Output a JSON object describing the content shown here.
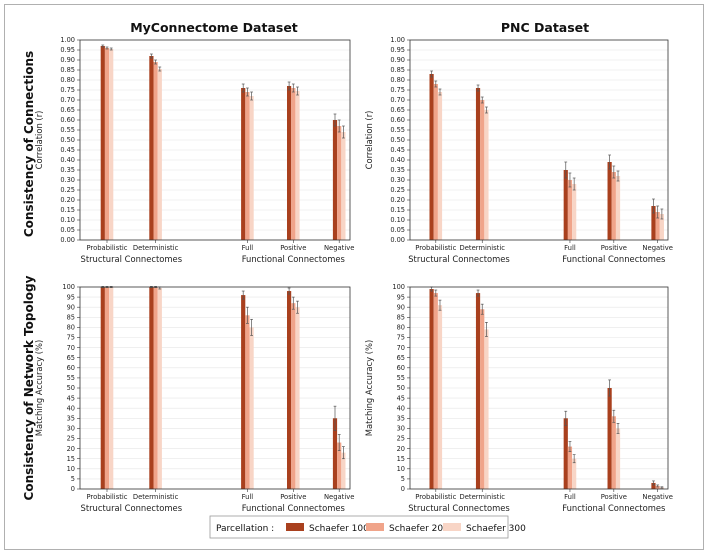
{
  "column_titles": [
    "MyConnectome Dataset",
    "PNC Dataset"
  ],
  "row_titles": [
    "Consistency of Connections",
    "Consistency of Network Topology"
  ],
  "legend": {
    "label": "Parcellation :",
    "entries": [
      "Schaefer 100",
      "Schaefer 200",
      "Schaefer 300"
    ]
  },
  "colors": {
    "series": [
      "#a9401e",
      "#f0a48a",
      "#f8d5c6"
    ],
    "error": "#555555",
    "grid": "#e6e6e6",
    "axis": "#333333"
  },
  "chart_data": [
    {
      "type": "bar",
      "dataset": "MyConnectome Dataset",
      "metric": "Consistency of Connections",
      "ylabel": "Correlation (r)",
      "ylim": [
        0,
        1.0
      ],
      "yticks": [
        0.0,
        0.05,
        0.1,
        0.15,
        0.2,
        0.25,
        0.3,
        0.35,
        0.4,
        0.45,
        0.5,
        0.55,
        0.6,
        0.65,
        0.7,
        0.75,
        0.8,
        0.85,
        0.9,
        0.95,
        1.0
      ],
      "categories": [
        "Probabilistic",
        "Deterministic",
        "Full",
        "Positive",
        "Negative"
      ],
      "groups": [
        {
          "label": "Structural Connectomes",
          "categories": [
            "Probabilistic",
            "Deterministic"
          ]
        },
        {
          "label": "Functional Connectomes",
          "categories": [
            "Full",
            "Positive",
            "Negative"
          ]
        }
      ],
      "series": [
        {
          "name": "Schaefer 100",
          "values": [
            0.97,
            0.92,
            0.76,
            0.77,
            0.6
          ],
          "errors": [
            0.005,
            0.01,
            0.02,
            0.02,
            0.03
          ]
        },
        {
          "name": "Schaefer 200",
          "values": [
            0.96,
            0.89,
            0.74,
            0.76,
            0.57
          ],
          "errors": [
            0.005,
            0.01,
            0.02,
            0.02,
            0.03
          ]
        },
        {
          "name": "Schaefer 300",
          "values": [
            0.955,
            0.855,
            0.72,
            0.745,
            0.54
          ],
          "errors": [
            0.005,
            0.01,
            0.02,
            0.02,
            0.03
          ]
        }
      ]
    },
    {
      "type": "bar",
      "dataset": "PNC Dataset",
      "metric": "Consistency of Connections",
      "ylabel": "Correlation (r)",
      "ylim": [
        0,
        1.0
      ],
      "yticks": [
        0.0,
        0.05,
        0.1,
        0.15,
        0.2,
        0.25,
        0.3,
        0.35,
        0.4,
        0.45,
        0.5,
        0.55,
        0.6,
        0.65,
        0.7,
        0.75,
        0.8,
        0.85,
        0.9,
        0.95,
        1.0
      ],
      "categories": [
        "Probabilistic",
        "Deterministic",
        "Full",
        "Positive",
        "Negative"
      ],
      "groups": [
        {
          "label": "Structural Connectomes",
          "categories": [
            "Probabilistic",
            "Deterministic"
          ]
        },
        {
          "label": "Functional Connectomes",
          "categories": [
            "Full",
            "Positive",
            "Negative"
          ]
        }
      ],
      "series": [
        {
          "name": "Schaefer 100",
          "values": [
            0.83,
            0.76,
            0.35,
            0.39,
            0.17
          ],
          "errors": [
            0.015,
            0.015,
            0.04,
            0.035,
            0.035
          ]
        },
        {
          "name": "Schaefer 200",
          "values": [
            0.78,
            0.7,
            0.3,
            0.34,
            0.14
          ],
          "errors": [
            0.015,
            0.015,
            0.035,
            0.03,
            0.03
          ]
        },
        {
          "name": "Schaefer 300",
          "values": [
            0.74,
            0.65,
            0.28,
            0.32,
            0.13
          ],
          "errors": [
            0.015,
            0.015,
            0.03,
            0.025,
            0.025
          ]
        }
      ]
    },
    {
      "type": "bar",
      "dataset": "MyConnectome Dataset",
      "metric": "Consistency of Network Topology",
      "ylabel": "Matching Accuracy (%)",
      "ylim": [
        0,
        100
      ],
      "yticks": [
        0,
        5,
        10,
        15,
        20,
        25,
        30,
        35,
        40,
        45,
        50,
        55,
        60,
        65,
        70,
        75,
        80,
        85,
        90,
        95,
        100
      ],
      "categories": [
        "Probabilistic",
        "Deterministic",
        "Full",
        "Positive",
        "Negative"
      ],
      "groups": [
        {
          "label": "Structural Connectomes",
          "categories": [
            "Probabilistic",
            "Deterministic"
          ]
        },
        {
          "label": "Functional Connectomes",
          "categories": [
            "Full",
            "Positive",
            "Negative"
          ]
        }
      ],
      "series": [
        {
          "name": "Schaefer 100",
          "values": [
            100,
            100,
            96,
            98,
            35
          ],
          "errors": [
            0.3,
            0.3,
            2,
            1.5,
            6
          ]
        },
        {
          "name": "Schaefer 200",
          "values": [
            100,
            100,
            86,
            92,
            23
          ],
          "errors": [
            0.3,
            0.3,
            4,
            3,
            4
          ]
        },
        {
          "name": "Schaefer 300",
          "values": [
            100,
            99.5,
            80,
            90,
            18
          ],
          "errors": [
            0.3,
            0.5,
            4,
            3,
            3
          ]
        }
      ]
    },
    {
      "type": "bar",
      "dataset": "PNC Dataset",
      "metric": "Consistency of Network Topology",
      "ylabel": "Matching Accuracy (%)",
      "ylim": [
        0,
        100
      ],
      "yticks": [
        0,
        5,
        10,
        15,
        20,
        25,
        30,
        35,
        40,
        45,
        50,
        55,
        60,
        65,
        70,
        75,
        80,
        85,
        90,
        95,
        100
      ],
      "categories": [
        "Probabilistic",
        "Deterministic",
        "Full",
        "Positive",
        "Negative"
      ],
      "groups": [
        {
          "label": "Structural Connectomes",
          "categories": [
            "Probabilistic",
            "Deterministic"
          ]
        },
        {
          "label": "Functional Connectomes",
          "categories": [
            "Full",
            "Positive",
            "Negative"
          ]
        }
      ],
      "series": [
        {
          "name": "Schaefer 100",
          "values": [
            99,
            97,
            35,
            50,
            3
          ],
          "errors": [
            1,
            1.5,
            3.5,
            4,
            1
          ]
        },
        {
          "name": "Schaefer 200",
          "values": [
            97,
            89,
            21,
            36,
            1.5
          ],
          "errors": [
            1.5,
            2.5,
            2.5,
            3,
            0.5
          ]
        },
        {
          "name": "Schaefer 300",
          "values": [
            91,
            79,
            15,
            30,
            0.8
          ],
          "errors": [
            2.5,
            3.5,
            2,
            2.5,
            0.3
          ]
        }
      ]
    }
  ]
}
